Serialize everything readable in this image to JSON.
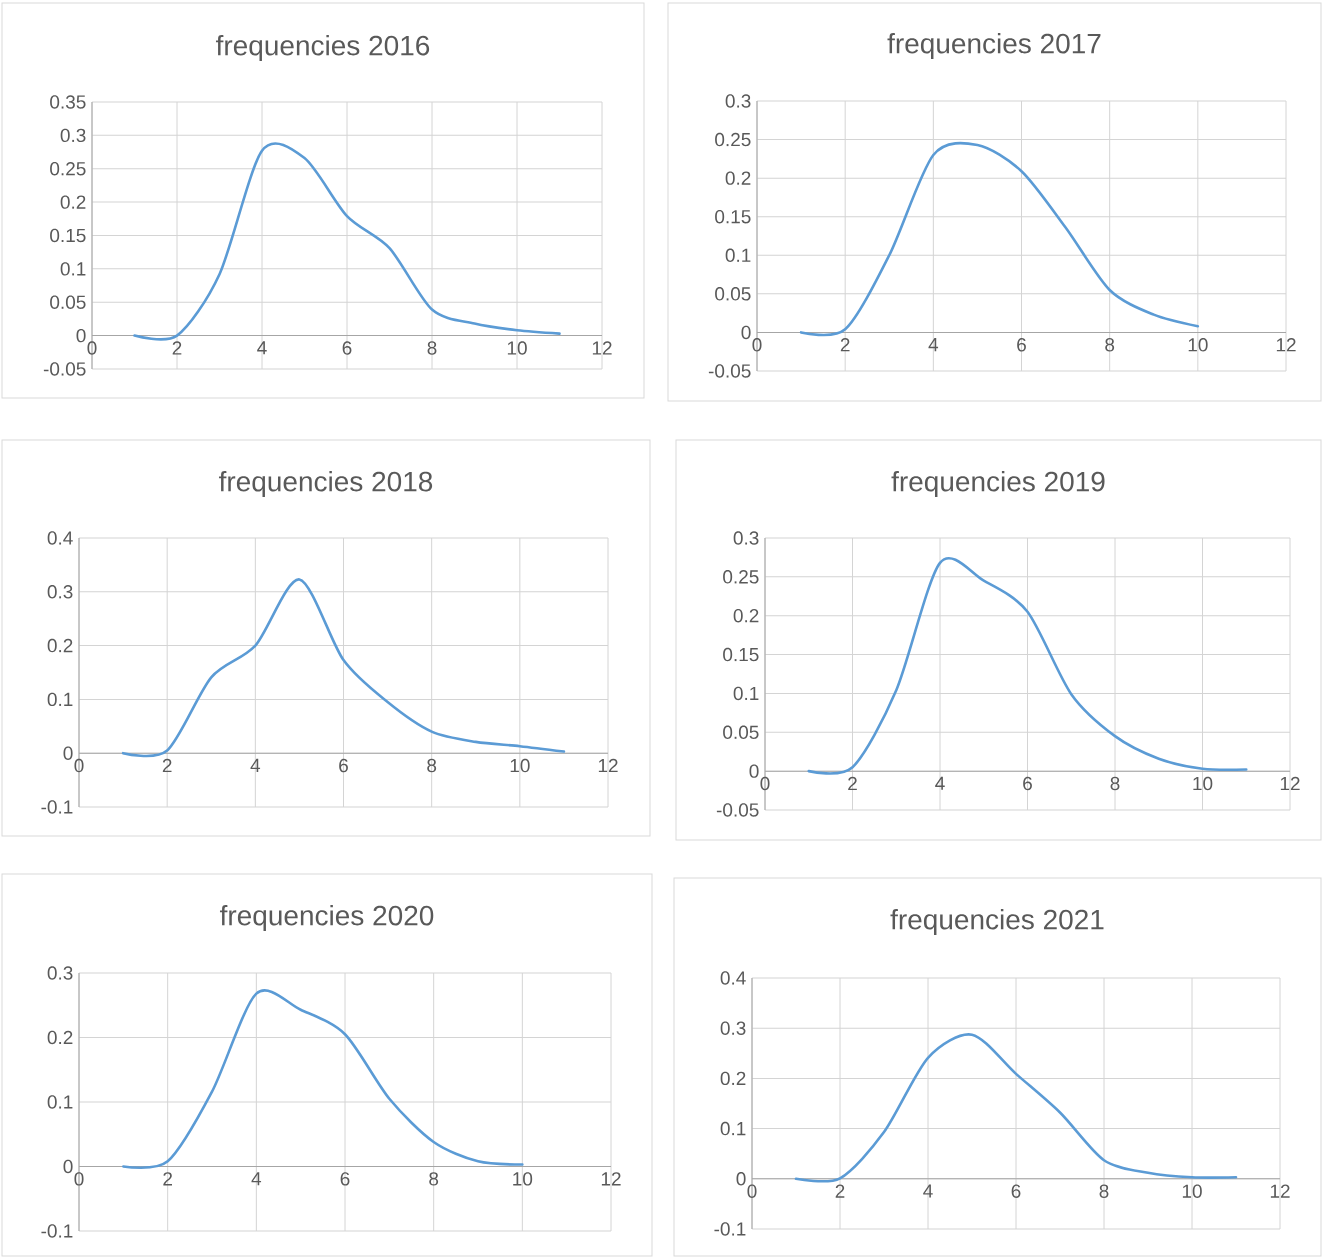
{
  "chart_data": [
    {
      "type": "line",
      "title": "frequencies  2016",
      "x": [
        1,
        2,
        3,
        4,
        5,
        6,
        7,
        8,
        9,
        10,
        11
      ],
      "series": [
        {
          "color": "#5b9bd5",
          "values": [
            0,
            0,
            0.092,
            0.277,
            0.266,
            0.179,
            0.131,
            0.039,
            0.018,
            0.008,
            0.003
          ]
        }
      ],
      "xlim": [
        0,
        12
      ],
      "ylim": [
        -0.05,
        0.35
      ],
      "xticks": [
        0,
        2,
        4,
        6,
        8,
        10,
        12
      ],
      "yticks": [
        -0.05,
        0,
        0.05,
        0.1,
        0.15,
        0.2,
        0.25,
        0.3,
        0.35
      ],
      "grid": true
    },
    {
      "type": "line",
      "title": "frequencies  2017",
      "x": [
        1,
        2,
        3,
        4,
        5,
        6,
        7,
        8,
        9,
        10
      ],
      "series": [
        {
          "color": "#5b9bd5",
          "values": [
            0,
            0.004,
            0.1,
            0.23,
            0.243,
            0.209,
            0.136,
            0.055,
            0.023,
            0.008
          ]
        }
      ],
      "xlim": [
        0,
        12
      ],
      "ylim": [
        -0.05,
        0.3
      ],
      "xticks": [
        0,
        2,
        4,
        6,
        8,
        10,
        12
      ],
      "yticks": [
        -0.05,
        0,
        0.05,
        0.1,
        0.15,
        0.2,
        0.25,
        0.3
      ],
      "grid": true
    },
    {
      "type": "line",
      "title": "frequencies  2018",
      "x": [
        1,
        2,
        3,
        4,
        5,
        6,
        7,
        8,
        9,
        10,
        11
      ],
      "series": [
        {
          "color": "#5b9bd5",
          "values": [
            0,
            0.005,
            0.141,
            0.2,
            0.323,
            0.173,
            0.095,
            0.04,
            0.021,
            0.013,
            0.003
          ]
        }
      ],
      "xlim": [
        0,
        12
      ],
      "ylim": [
        -0.1,
        0.4
      ],
      "xticks": [
        0,
        2,
        4,
        6,
        8,
        10,
        12
      ],
      "yticks": [
        -0.1,
        0,
        0.1,
        0.2,
        0.3,
        0.4
      ],
      "grid": true
    },
    {
      "type": "line",
      "title": "frequencies  2019",
      "x": [
        1,
        2,
        3,
        4,
        5,
        6,
        7,
        8,
        9,
        10,
        11
      ],
      "series": [
        {
          "color": "#5b9bd5",
          "values": [
            0,
            0.005,
            0.104,
            0.268,
            0.245,
            0.205,
            0.099,
            0.045,
            0.016,
            0.003,
            0.002
          ]
        }
      ],
      "xlim": [
        0,
        12
      ],
      "ylim": [
        -0.05,
        0.3
      ],
      "xticks": [
        0,
        2,
        4,
        6,
        8,
        10,
        12
      ],
      "yticks": [
        -0.05,
        0,
        0.05,
        0.1,
        0.15,
        0.2,
        0.25,
        0.3
      ],
      "grid": true
    },
    {
      "type": "line",
      "title": "frequencies  2020",
      "x": [
        1,
        2,
        3,
        4,
        5,
        6,
        7,
        8,
        9,
        10
      ],
      "series": [
        {
          "color": "#5b9bd5",
          "values": [
            0,
            0.008,
            0.116,
            0.268,
            0.243,
            0.205,
            0.105,
            0.038,
            0.008,
            0.003
          ]
        }
      ],
      "xlim": [
        0,
        12
      ],
      "ylim": [
        -0.1,
        0.3
      ],
      "xticks": [
        0,
        2,
        4,
        6,
        8,
        10,
        12
      ],
      "yticks": [
        -0.1,
        0,
        0.1,
        0.2,
        0.3
      ],
      "grid": true
    },
    {
      "type": "line",
      "title": "frequencies  2021",
      "x": [
        1,
        2,
        3,
        4,
        5,
        6,
        7,
        8,
        9,
        10,
        11
      ],
      "series": [
        {
          "color": "#5b9bd5",
          "values": [
            0,
            0.001,
            0.093,
            0.241,
            0.287,
            0.209,
            0.132,
            0.037,
            0.012,
            0.003,
            0.003
          ]
        }
      ],
      "xlim": [
        0,
        12
      ],
      "ylim": [
        -0.1,
        0.4
      ],
      "xticks": [
        0,
        2,
        4,
        6,
        8,
        10,
        12
      ],
      "yticks": [
        -0.1,
        0,
        0.1,
        0.2,
        0.3,
        0.4
      ],
      "grid": true
    }
  ]
}
